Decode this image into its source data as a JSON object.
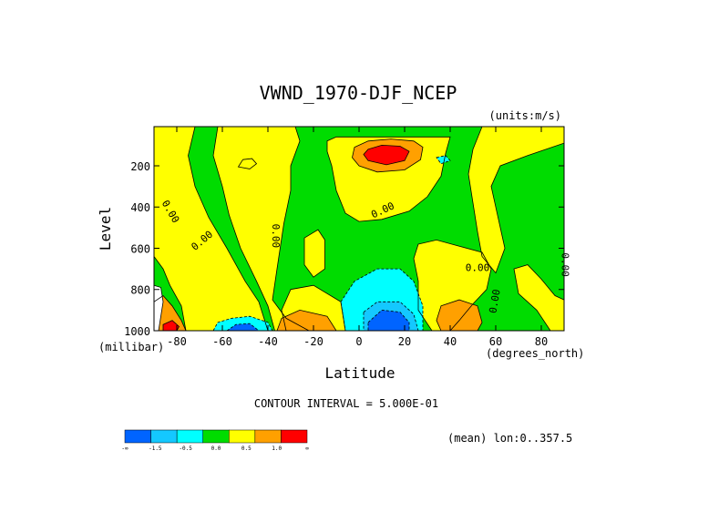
{
  "chart_data": {
    "type": "contour",
    "title": "VWND_1970-DJF_NCEP",
    "units_label": "(units:m/s)",
    "xlabel": "Latitude",
    "ylabel": "Level",
    "x_unit_label": "(degrees_north)",
    "y_unit_label": "(millibar)",
    "xlim": [
      -90,
      90
    ],
    "ylim": [
      1000,
      10
    ],
    "x_ticks": [
      -80,
      -60,
      -40,
      -20,
      0,
      20,
      40,
      60,
      80
    ],
    "x_tick_labels": [
      "-80",
      "-60",
      "-40",
      "-20",
      "0",
      "20",
      "40",
      "60",
      "80"
    ],
    "y_ticks": [
      200,
      400,
      600,
      800,
      1000
    ],
    "y_tick_labels": [
      "200",
      "400",
      "600",
      "800",
      "1000"
    ],
    "contour_interval_text": "CONTOUR INTERVAL = 5.000E-01",
    "mean_text": "(mean) lon:0..357.5",
    "contour_labels": [
      {
        "text": "0.00",
        "lat": -84,
        "lev": 430,
        "rot": 60
      },
      {
        "text": "0.00",
        "lat": -68,
        "lev": 575,
        "rot": -40
      },
      {
        "text": "0.00",
        "lat": -38,
        "lev": 540,
        "rot": 90
      },
      {
        "text": "0.00",
        "lat": 11,
        "lev": 430,
        "rot": -25
      },
      {
        "text": "0.00",
        "lat": 52,
        "lev": 710,
        "rot": 0
      },
      {
        "text": "0.00",
        "lat": 61,
        "lev": 860,
        "rot": -80
      },
      {
        "text": "0.00",
        "lat": 89,
        "lev": 680,
        "rot": 90
      }
    ],
    "colorbar": {
      "colors": [
        "#0064ff",
        "#14c8ff",
        "#00ffff",
        "#00dc00",
        "#ffff00",
        "#ffa000",
        "#ff0000"
      ],
      "labels": [
        "-∞",
        "-1.5",
        "-0.5",
        "0.0",
        "0.5",
        "1.0",
        "∞"
      ]
    },
    "fill_colors": {
      "background": "#00dc00",
      "positive_weak": "#ffff00",
      "positive_mid": "#ffa000",
      "positive_strong": "#ff0000",
      "negative_weak": "#00ffff",
      "negative_mid": "#14c8ff",
      "negative_strong": "#0064ff"
    }
  }
}
